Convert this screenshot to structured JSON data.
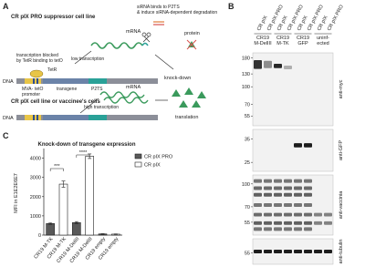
{
  "panel_a": {
    "label": "A",
    "top_title": "CR pIX PRO suppressor cell line",
    "sirna_note": [
      "siRNA binds to P2TS",
      "& induce siRNA-dependent degradation"
    ],
    "mrna_top": "mRNA",
    "protein": "protein",
    "blocked": [
      "transcription blocked",
      "by TetR binding to tetO"
    ],
    "tetr": "TetR",
    "low": "low transcription",
    "dna_top": "DNA",
    "promoter": [
      "MVA-",
      "promoter"
    ],
    "teto": "tetO",
    "transgene": "transgene",
    "p2ts": "P2TS",
    "knockdown": "knock-down",
    "bottom_title": "CR pIX cell line or vaccinee's cells",
    "mrna_bottom": "mRNA",
    "high": "high transcription",
    "dna_bottom": "DNA",
    "translation": "translation"
  },
  "panel_b": {
    "label": "B",
    "lanes": [
      "CR pIX",
      "CR pIX PRO",
      "CR pIX",
      "CR pIX PRO",
      "CR pIX",
      "CR pIX PRO",
      "CR pIX",
      "CR pIX PRO"
    ],
    "groups": [
      [
        "CR19",
        "M-DelIII"
      ],
      [
        "CR19",
        "M-TK"
      ],
      [
        "CR19",
        "GFP"
      ],
      [
        "uninf-",
        "ected"
      ]
    ],
    "blots": [
      {
        "antibody": "anti-myc",
        "mw": [
          180,
          130,
          100,
          70,
          55
        ]
      },
      {
        "antibody": "anti-GFP",
        "mw": [
          35,
          25
        ]
      },
      {
        "antibody": "anti-vaccinia",
        "mw": [
          100,
          70,
          55
        ]
      },
      {
        "antibody": "anti-tubulin",
        "mw": [
          55
        ]
      }
    ]
  },
  "panel_c": {
    "label": "C"
  },
  "chart_data": {
    "type": "bar",
    "title": "Knock-down of transgene expression",
    "y_label": "MFI in E1E2E6E7",
    "categories": [
      "CR19 M-TK",
      "CR19 M-TK",
      "CR19 M-DelIII",
      "CR19 M-DelIII",
      "CR19 empty",
      "CR19 empty"
    ],
    "series": [
      {
        "name": "CR pIX PRO",
        "color": "#595959",
        "values": [
          600,
          null,
          650,
          null,
          60,
          null
        ],
        "errors": [
          40,
          null,
          50,
          null,
          15,
          null
        ]
      },
      {
        "name": "CR pIX",
        "color": "#ffffff",
        "values": [
          null,
          2650,
          null,
          4100,
          null,
          50
        ],
        "errors": [
          null,
          160,
          null,
          120,
          null,
          15
        ]
      }
    ],
    "ylim": [
      0,
      4500
    ],
    "yticks": [
      0,
      1000,
      2000,
      3000,
      4000
    ],
    "annotations": [
      "***",
      "****"
    ]
  }
}
